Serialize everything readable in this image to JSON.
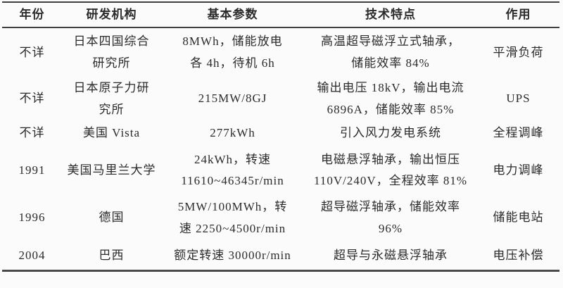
{
  "page": {
    "background_color": "#fbfbfb",
    "text_color": "#2b2b2b",
    "rule_color": "#3f3f3f"
  },
  "table": {
    "headers": [
      "年份",
      "研发机构",
      "基本参数",
      "技术特点",
      "作用"
    ],
    "rows": [
      {
        "year": "不详",
        "org": "日本四国综合\n研究所",
        "params": "8MWh，储能放电\n各 4h，待机 6h",
        "features": "高温超导磁浮立式轴承，\n储能效率 84%",
        "role": "平滑负荷"
      },
      {
        "year": "不详",
        "org": "日本原子力研\n究所",
        "params": "215MW/8GJ",
        "features": "输出电压 18kV，输出电流\n6896A，储能效率 85%",
        "role": "UPS"
      },
      {
        "year": "不详",
        "org": "美国 Vista",
        "params": "277kWh",
        "features": "引入风力发电系统",
        "role": "全程调峰"
      },
      {
        "year": "1991",
        "org": "美国马里兰大学",
        "params": "24kWh，转速\n11610~46345r/min",
        "features": "电磁悬浮轴承，输出恒压\n110V/240V，全程效率 81%",
        "role": "电力调峰"
      },
      {
        "year": "1996",
        "org": "德国",
        "params": "5MW/100MWh，转\n速 2250~4500r/min",
        "features": "超导磁浮轴承，储能效率\n96%",
        "role": "储能电站"
      },
      {
        "year": "2004",
        "org": "巴西",
        "params": "额定转速 30000r/min",
        "features": "超导与永磁悬浮轴承",
        "role": "电压补偿"
      }
    ]
  }
}
